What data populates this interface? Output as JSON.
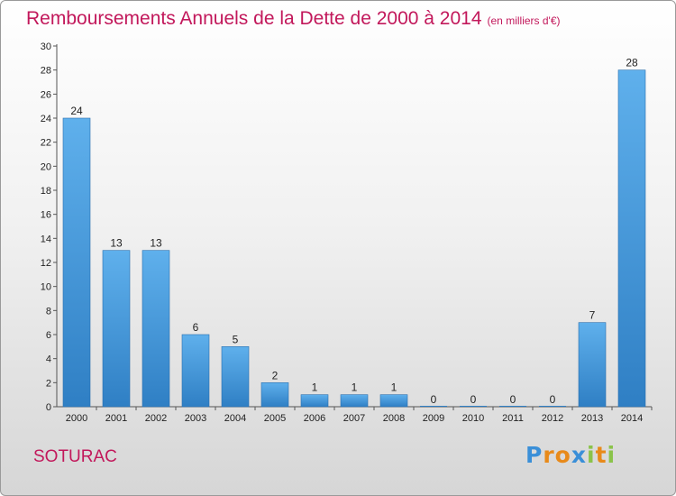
{
  "header": {
    "title": "Remboursements Annuels de la Dette de 2000 à 2014",
    "unit": "(en milliers d'€)"
  },
  "footer": {
    "commune": "SOTURAC"
  },
  "logo": {
    "letters": [
      {
        "ch": "P",
        "color": "#3a8fd8"
      },
      {
        "ch": "r",
        "color": "#e88a1a"
      },
      {
        "ch": "o",
        "color": "#e88a1a"
      },
      {
        "ch": "x",
        "color": "#3a8fd8"
      },
      {
        "ch": "i",
        "color": "#8bc34a"
      },
      {
        "ch": "t",
        "color": "#e88a1a"
      },
      {
        "ch": "i",
        "color": "#8bc34a"
      }
    ]
  },
  "chart_data": {
    "type": "bar",
    "title": "Remboursements Annuels de la Dette de 2000 à 2014",
    "unit": "(en milliers d'€)",
    "categories": [
      "2000",
      "2001",
      "2002",
      "2003",
      "2004",
      "2005",
      "2006",
      "2007",
      "2008",
      "2009",
      "2010",
      "2011",
      "2012",
      "2013",
      "2014"
    ],
    "values": [
      24,
      13,
      13,
      6,
      5,
      2,
      1,
      1,
      1,
      0,
      0,
      0,
      0,
      7,
      28
    ],
    "ylim": [
      0,
      30
    ],
    "yticks": [
      0,
      2,
      4,
      6,
      8,
      10,
      12,
      14,
      16,
      18,
      20,
      22,
      24,
      26,
      28,
      30
    ],
    "grid": false,
    "bar_color": "#4a9fe0"
  }
}
